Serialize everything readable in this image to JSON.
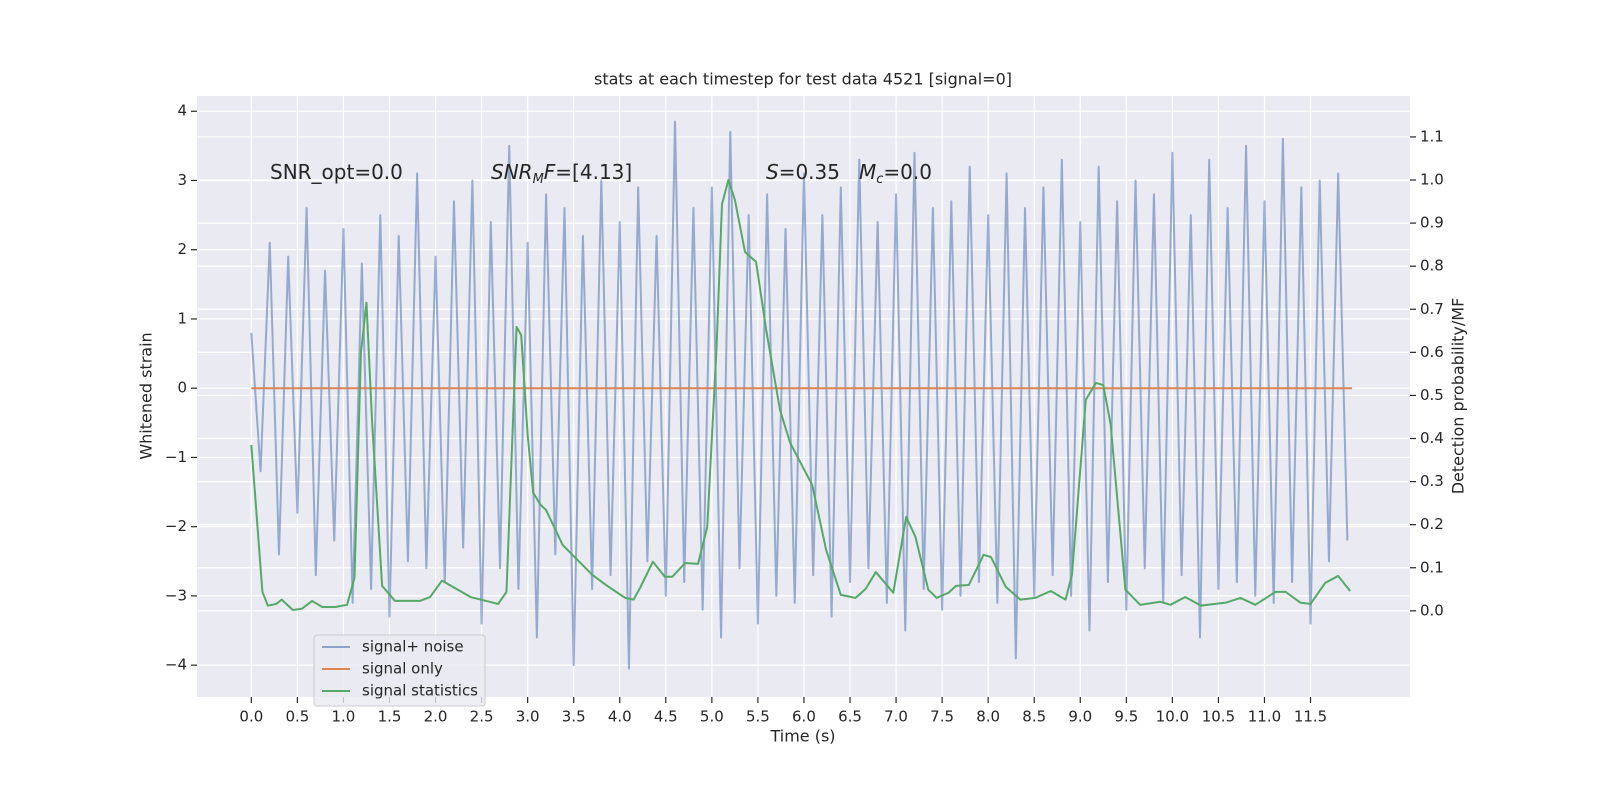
{
  "chart_data": {
    "type": "line",
    "title": "stats at each timestep for test data 4521 [signal=0]",
    "xlabel": "Time (s)",
    "ylabel": "Whitened strain",
    "y2label": "Detection probability/MF",
    "xlim": [
      -0.59,
      12.58
    ],
    "ylim": [
      -4.46,
      4.22
    ],
    "y2lim": [
      -0.2,
      1.195
    ],
    "xticks": [
      {
        "value": 0,
        "label": "0.0"
      },
      0.5,
      {
        "value": 1,
        "label": "1.0"
      },
      1.5,
      {
        "value": 2,
        "label": "2.0"
      },
      2.5,
      {
        "value": 3,
        "label": "3.0"
      },
      3.5,
      {
        "value": 4,
        "label": "4.0"
      },
      4.5,
      {
        "value": 5,
        "label": "5.0"
      },
      5.5,
      {
        "value": 6,
        "label": "6.0"
      },
      6.5,
      {
        "value": 7,
        "label": "7.0"
      },
      7.5,
      {
        "value": 8,
        "label": "8.0"
      },
      8.5,
      {
        "value": 9,
        "label": "9.0"
      },
      9.5,
      {
        "value": 10,
        "label": "10.0"
      },
      10.5,
      {
        "value": 11,
        "label": "11.0"
      },
      11.5
    ],
    "yticks": [
      {
        "value": -4,
        "label": "−4"
      },
      {
        "value": -3,
        "label": "−3"
      },
      {
        "value": -2,
        "label": "−2"
      },
      {
        "value": -1,
        "label": "−1"
      },
      0,
      1,
      2,
      3,
      4
    ],
    "y2ticks": [
      {
        "value": 0,
        "label": "0.0"
      },
      0.1,
      0.2,
      0.3,
      0.4,
      0.5,
      0.6,
      0.7,
      0.8,
      0.9,
      {
        "value": 1,
        "label": "1.0"
      },
      1.1
    ],
    "grid": true,
    "legend": "lower left",
    "annotations": [
      [
        "SNR_opt=0.0"
      ],
      [
        "SNR",
        "M",
        "F",
        "=[4.13]"
      ],
      [
        "S",
        "=0.35"
      ],
      [
        "M",
        "c",
        "=0.0"
      ]
    ],
    "series": [
      {
        "name": "signal+ noise",
        "color": "#4c72b0",
        "x": [
          0,
          0.1,
          0.2,
          0.3,
          0.4,
          0.5,
          0.6,
          0.7,
          0.8,
          0.9,
          1,
          1.1,
          1.2,
          1.3,
          1.4,
          1.5,
          1.6,
          1.7,
          1.8,
          1.9,
          2,
          2.1,
          2.2,
          2.3,
          2.4,
          2.5,
          2.6,
          2.7,
          2.8,
          2.9,
          3,
          3.1,
          3.2,
          3.3,
          3.4,
          3.5,
          3.6,
          3.7,
          3.8,
          3.9,
          4,
          4.1,
          4.2,
          4.3,
          4.4,
          4.5,
          4.6,
          4.7,
          4.8,
          4.9,
          5,
          5.1,
          5.2,
          5.3,
          5.4,
          5.5,
          5.6,
          5.7,
          5.8,
          5.9,
          6,
          6.1,
          6.2,
          6.3,
          6.4,
          6.5,
          6.6,
          6.7,
          6.8,
          6.9,
          7,
          7.1,
          7.2,
          7.3,
          7.4,
          7.5,
          7.6,
          7.7,
          7.8,
          7.9,
          8,
          8.1,
          8.2,
          8.3,
          8.4,
          8.5,
          8.6,
          8.7,
          8.8,
          8.9,
          9,
          9.1,
          9.2,
          9.3,
          9.4,
          9.5,
          9.6,
          9.7,
          9.8,
          9.9,
          10,
          10.1,
          10.2,
          10.3,
          10.4,
          10.5,
          10.6,
          10.7,
          10.8,
          10.9,
          11,
          11.1,
          11.2,
          11.3,
          11.4,
          11.5,
          11.6,
          11.7,
          11.8,
          11.9
        ],
        "values": [
          0.8,
          -1.2,
          2.1,
          -2.4,
          1.9,
          -1.8,
          2.6,
          -2.7,
          1.7,
          -2.2,
          2.3,
          -3.1,
          1.8,
          -2.9,
          2.5,
          -3.3,
          2.2,
          -2.5,
          3.1,
          -2.6,
          1.9,
          -2.8,
          2.7,
          -2.3,
          3.0,
          -3.4,
          2.4,
          -2.6,
          3.5,
          -2.9,
          2.1,
          -3.6,
          2.8,
          -2.4,
          2.6,
          -4.0,
          2.2,
          -2.9,
          3.0,
          -2.7,
          2.4,
          -4.05,
          2.9,
          -2.5,
          2.2,
          -3.0,
          3.85,
          -2.8,
          2.6,
          -3.2,
          2.9,
          -3.6,
          3.7,
          -2.6,
          2.5,
          -3.4,
          2.8,
          -3.0,
          2.3,
          -3.1,
          3.1,
          -2.7,
          2.5,
          -3.3,
          2.9,
          -2.8,
          3.3,
          -2.6,
          2.4,
          -3.1,
          2.8,
          -3.5,
          3.4,
          -2.9,
          2.6,
          -3.2,
          2.7,
          -3.0,
          3.2,
          -2.8,
          2.5,
          -3.1,
          3.1,
          -3.9,
          2.6,
          -3.0,
          2.9,
          -2.7,
          3.3,
          -3.0,
          2.4,
          -3.5,
          3.2,
          -2.8,
          2.7,
          -3.2,
          3.0,
          -2.6,
          2.8,
          -3.1,
          3.4,
          -2.7,
          2.5,
          -3.6,
          3.3,
          -2.9,
          2.6,
          -2.8,
          3.5,
          -3.0,
          2.7,
          -3.1,
          3.6,
          -2.8,
          2.9,
          -3.4,
          3.0,
          -2.5,
          3.1,
          -2.2
        ]
      },
      {
        "name": "signal only",
        "color": "#dd8452",
        "x": [
          0,
          11.95
        ],
        "values": [
          0,
          0
        ]
      },
      {
        "name": "signal statistics",
        "color": "#55a868",
        "axis": "y2",
        "x": [
          0,
          0.12,
          0.18,
          0.27,
          0.33,
          0.45,
          0.55,
          0.66,
          0.77,
          0.91,
          1.04,
          1.12,
          1.19,
          1.25,
          1.31,
          1.42,
          1.56,
          1.83,
          1.94,
          2.07,
          2.38,
          2.68,
          2.77,
          2.88,
          2.93,
          3.0,
          3.06,
          3.14,
          3.2,
          3.38,
          3.7,
          3.85,
          4.06,
          4.15,
          4.22,
          4.36,
          4.49,
          4.57,
          4.71,
          4.85,
          4.95,
          5.05,
          5.11,
          5.18,
          5.25,
          5.36,
          5.48,
          5.59,
          5.74,
          5.85,
          6.09,
          6.24,
          6.4,
          6.56,
          6.67,
          6.78,
          6.97,
          7.11,
          7.21,
          7.35,
          7.44,
          7.57,
          7.65,
          7.79,
          7.95,
          8.03,
          8.19,
          8.35,
          8.51,
          8.68,
          8.84,
          8.91,
          9.06,
          9.17,
          9.25,
          9.33,
          9.49,
          9.65,
          9.87,
          9.98,
          10.14,
          10.31,
          10.58,
          10.74,
          10.9,
          11.12,
          11.23,
          11.39,
          11.5,
          11.66,
          11.8,
          11.93
        ],
        "values": [
          0.385,
          0.044,
          0.012,
          0.016,
          0.026,
          0.002,
          0.005,
          0.023,
          0.009,
          0.009,
          0.014,
          0.077,
          0.6,
          0.715,
          0.443,
          0.058,
          0.023,
          0.023,
          0.032,
          0.07,
          0.032,
          0.016,
          0.044,
          0.659,
          0.64,
          0.408,
          0.274,
          0.246,
          0.234,
          0.153,
          0.084,
          0.06,
          0.03,
          0.026,
          0.053,
          0.114,
          0.079,
          0.079,
          0.111,
          0.109,
          0.195,
          0.606,
          0.944,
          1.0,
          0.954,
          0.833,
          0.81,
          0.652,
          0.466,
          0.39,
          0.292,
          0.142,
          0.037,
          0.03,
          0.051,
          0.09,
          0.042,
          0.218,
          0.172,
          0.049,
          0.03,
          0.042,
          0.058,
          0.06,
          0.13,
          0.125,
          0.056,
          0.026,
          0.03,
          0.046,
          0.026,
          0.084,
          0.49,
          0.529,
          0.524,
          0.432,
          0.049,
          0.014,
          0.021,
          0.014,
          0.032,
          0.012,
          0.019,
          0.03,
          0.014,
          0.044,
          0.044,
          0.019,
          0.016,
          0.065,
          0.081,
          0.046
        ]
      }
    ]
  }
}
